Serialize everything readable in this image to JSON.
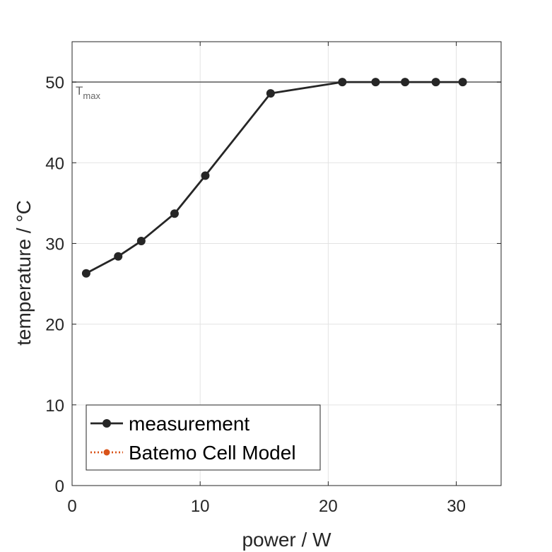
{
  "chart_data": {
    "type": "line",
    "xlabel": "power / W",
    "ylabel": "temperature / °C",
    "xlim": [
      0,
      33.5
    ],
    "ylim": [
      0,
      55
    ],
    "xticks": [
      0,
      10,
      20,
      30
    ],
    "yticks": [
      0,
      10,
      20,
      30,
      40,
      50
    ],
    "grid": true,
    "legend_position": "bottom-left",
    "reference_line": {
      "y": 50,
      "label": "T",
      "label_sub": "max",
      "color": "#666666"
    },
    "series": [
      {
        "name": "measurement",
        "color": "#262626",
        "line_style": "solid",
        "marker": "circle",
        "x": [
          1.1,
          3.6,
          5.4,
          8.0,
          10.4,
          15.5,
          21.1,
          23.7,
          26.0,
          28.4,
          30.5
        ],
        "y": [
          26.3,
          28.4,
          30.3,
          33.7,
          38.4,
          48.6,
          50.0,
          50.0,
          50.0,
          50.0,
          50.0
        ]
      },
      {
        "name": "Batemo Cell Model",
        "color": "#D95319",
        "line_style": "dotted",
        "marker": "circle",
        "x": [],
        "y": []
      }
    ]
  }
}
